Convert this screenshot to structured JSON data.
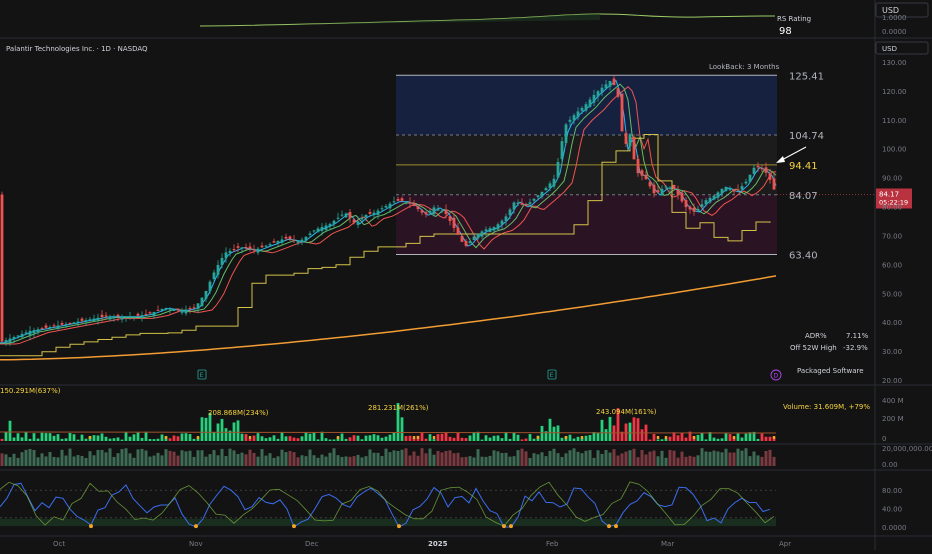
{
  "header": {
    "symbol_title": "Palantir Technologies Inc. · 1D · NASDAQ",
    "currency_top": "USD",
    "currency_main": "USD",
    "rs_label": "RS Rating",
    "rs_value": "98",
    "lookback_label": "LookBack: 3 Months"
  },
  "rs_axis_ticks": [
    "1.0000",
    "0.0000"
  ],
  "fib_levels": [
    "125.41",
    "104.74",
    "94.41",
    "84.07",
    "63.40"
  ],
  "price_axis_ticks": [
    "130.00",
    "120.00",
    "110.00",
    "100.00",
    "90.00",
    "80.00",
    "70.00",
    "60.00",
    "50.00",
    "40.00",
    "30.00",
    "20.00"
  ],
  "last_price": {
    "value": "84.17",
    "countdown": "05:22:19"
  },
  "stats": {
    "adr_label": "ADR%",
    "adr_value": "7.11%",
    "off_high_label": "Off 52W High",
    "off_high_value": "-32.9%",
    "industry": "Packaged Software"
  },
  "markers": {
    "earnings": [
      "E",
      "E"
    ],
    "dividend": "D"
  },
  "volume": {
    "annotations": [
      "150.291M(637%)",
      "208.868M(234%)",
      "281.231M(261%)",
      "243.094M(161%)"
    ],
    "readout": "Volume: 31.609M, +79%",
    "axis_ticks": [
      "400 M",
      "200 M",
      "0"
    ]
  },
  "pane3_ticks": [
    "20,000,000.00",
    "0.00"
  ],
  "osc_ticks": [
    "80.00",
    "40.00",
    "0.0000"
  ],
  "x_ticks": [
    "Oct",
    "Nov",
    "Dec",
    "2025",
    "Feb",
    "Mar",
    "Apr"
  ],
  "colors": {
    "up": "#26a69a",
    "down": "#ef5350",
    "vol_up": "#26d07c",
    "vol_down": "#f23645",
    "ema_fast": "#29b6f6",
    "ema_mid": "#66bb6a",
    "ema_slow": "#ef5350",
    "sma200": "#f39c34",
    "stair": "#d4c24a",
    "osc_line": "#3a6df0",
    "osc_dot": "#f3a324"
  },
  "chart_data": {
    "type": "candlestick",
    "title": "Palantir Technologies Inc. · 1D · NASDAQ",
    "x_ticks": [
      "Oct",
      "Nov",
      "Dec",
      "2025",
      "Feb",
      "Mar",
      "Apr"
    ],
    "ylim": [
      20,
      135
    ],
    "close_path": [
      [
        0,
        33
      ],
      [
        15,
        35
      ],
      [
        30,
        37
      ],
      [
        45,
        38
      ],
      [
        60,
        39
      ],
      [
        75,
        40
      ],
      [
        90,
        41
      ],
      [
        105,
        42
      ],
      [
        120,
        42
      ],
      [
        135,
        42
      ],
      [
        150,
        43
      ],
      [
        165,
        45
      ],
      [
        180,
        44
      ],
      [
        195,
        45
      ],
      [
        205,
        50
      ],
      [
        215,
        58
      ],
      [
        225,
        64
      ],
      [
        240,
        66
      ],
      [
        255,
        65
      ],
      [
        270,
        67
      ],
      [
        285,
        69
      ],
      [
        300,
        68
      ],
      [
        315,
        72
      ],
      [
        330,
        74
      ],
      [
        345,
        78
      ],
      [
        355,
        74
      ],
      [
        365,
        77
      ],
      [
        375,
        78
      ],
      [
        385,
        80
      ],
      [
        395,
        82
      ],
      [
        405,
        82
      ],
      [
        415,
        80
      ],
      [
        425,
        77
      ],
      [
        435,
        80
      ],
      [
        445,
        78
      ],
      [
        455,
        72
      ],
      [
        465,
        66
      ],
      [
        475,
        70
      ],
      [
        485,
        72
      ],
      [
        495,
        73
      ],
      [
        505,
        76
      ],
      [
        515,
        82
      ],
      [
        525,
        80
      ],
      [
        535,
        83
      ],
      [
        545,
        86
      ],
      [
        555,
        90
      ],
      [
        565,
        108
      ],
      [
        575,
        112
      ],
      [
        585,
        115
      ],
      [
        595,
        119
      ],
      [
        605,
        122
      ],
      [
        612,
        124
      ],
      [
        618,
        118
      ],
      [
        624,
        100
      ],
      [
        630,
        105
      ],
      [
        636,
        92
      ],
      [
        645,
        90
      ],
      [
        655,
        84
      ],
      [
        665,
        87
      ],
      [
        675,
        86
      ],
      [
        685,
        80
      ],
      [
        695,
        78
      ],
      [
        705,
        82
      ],
      [
        715,
        84
      ],
      [
        725,
        87
      ],
      [
        735,
        85
      ],
      [
        745,
        88
      ],
      [
        755,
        94
      ],
      [
        762,
        93
      ],
      [
        768,
        91
      ],
      [
        776,
        84.17
      ]
    ],
    "fib_levels": [
      125.41,
      104.74,
      94.41,
      84.07,
      63.4
    ],
    "sma200_end": 56,
    "last_close": 84.17,
    "volume_peaks_M": [
      150.291,
      208.868,
      281.231,
      243.094
    ],
    "current_volume_M": 31.609,
    "rs_rating": 98
  }
}
